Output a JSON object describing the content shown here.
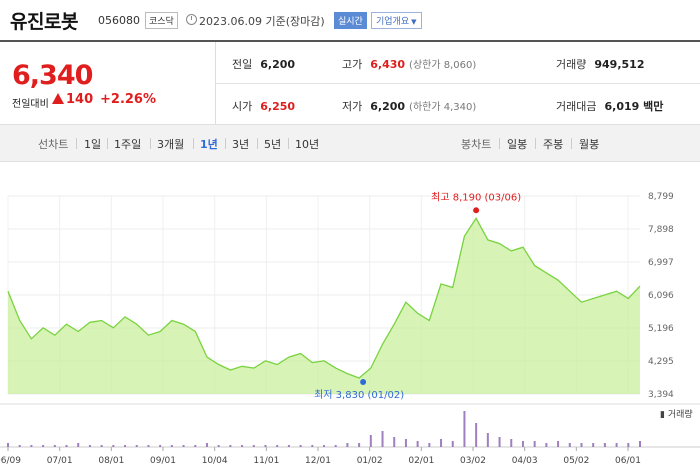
{
  "header": {
    "stock_name": "유진로봇",
    "stock_code": "056080",
    "market": "코스닥",
    "clock_icon": "clock-icon",
    "date_text": "2023.06.09 기준(장마감)",
    "realtime_label": "실시간",
    "company_info_label": "기업개요"
  },
  "colors": {
    "up": "#e01e1e",
    "accent": "#2f6bd6",
    "area_fill": "#c9ef9e",
    "area_line": "#79d33f"
  },
  "price": {
    "current": "6,340",
    "change_label": "전일대비",
    "change_icon": "triangle-up-icon",
    "change_amount": "140",
    "change_percent": "+2.26%"
  },
  "stats": {
    "prev_close_label": "전일",
    "prev_close": "6,200",
    "high_label": "고가",
    "high": "6,430",
    "upper_limit": "(상한가 8,060)",
    "volume_label": "거래량",
    "volume": "949,512",
    "open_label": "시가",
    "open": "6,250",
    "low_label": "저가",
    "low": "6,200",
    "lower_limit": "(하한가 4,340)",
    "amount_label": "거래대금",
    "amount": "6,019 백만"
  },
  "tabs": {
    "line_chart_label": "선차트",
    "periods": [
      "1일",
      "1주일",
      "3개월",
      "1년",
      "3년",
      "5년",
      "10년"
    ],
    "active_period": "1년",
    "candle_label": "봉차트",
    "candle_periods": [
      "일봉",
      "주봉",
      "월봉"
    ]
  },
  "chart_data": {
    "type": "area",
    "ylim": [
      3394,
      8799
    ],
    "yticks": [
      "8,799",
      "7,898",
      "6,997",
      "6,096",
      "5,196",
      "4,295",
      "3,394"
    ],
    "xticks": [
      "06/09",
      "07/01",
      "08/01",
      "09/01",
      "10/04",
      "11/01",
      "12/01",
      "01/02",
      "02/01",
      "03/02",
      "04/03",
      "05/02",
      "06/01"
    ],
    "high_annotation": "최고 8,190 (03/06)",
    "low_annotation": "최저 3,830 (01/02)",
    "volume_legend": "거래량",
    "x": [
      "06/09",
      "06/16",
      "06/23",
      "06/30",
      "07/07",
      "07/14",
      "07/21",
      "07/28",
      "08/04",
      "08/11",
      "08/18",
      "08/25",
      "09/01",
      "09/08",
      "09/15",
      "09/22",
      "09/29",
      "10/06",
      "10/13",
      "10/20",
      "10/27",
      "11/03",
      "11/10",
      "11/17",
      "11/24",
      "12/01",
      "12/08",
      "12/15",
      "12/22",
      "12/29",
      "01/02",
      "01/06",
      "01/13",
      "01/20",
      "01/27",
      "02/03",
      "02/10",
      "02/17",
      "02/24",
      "03/03",
      "03/06",
      "03/10",
      "03/17",
      "03/24",
      "03/31",
      "04/07",
      "04/14",
      "04/21",
      "04/28",
      "05/05",
      "05/12",
      "05/19",
      "05/26",
      "06/02",
      "06/09"
    ],
    "values": [
      6200,
      5400,
      4900,
      5200,
      5000,
      5300,
      5100,
      5350,
      5400,
      5200,
      5500,
      5300,
      5000,
      5100,
      5400,
      5300,
      5100,
      4400,
      4200,
      4050,
      4150,
      4100,
      4300,
      4200,
      4400,
      4500,
      4250,
      4300,
      4100,
      3950,
      3830,
      4100,
      4750,
      5300,
      5900,
      5600,
      5400,
      6400,
      6300,
      7700,
      8190,
      7600,
      7500,
      7300,
      7400,
      6900,
      6700,
      6500,
      6200,
      5900,
      6000,
      6100,
      6200,
      6000,
      6340
    ],
    "volumes": [
      2,
      1,
      1,
      1,
      1,
      1,
      2,
      1,
      1,
      1,
      1,
      1,
      1,
      1,
      1,
      1,
      1,
      2,
      1,
      1,
      1,
      1,
      1,
      1,
      1,
      1,
      1,
      1,
      1,
      2,
      2,
      6,
      8,
      5,
      4,
      3,
      2,
      4,
      3,
      18,
      12,
      7,
      5,
      4,
      3,
      3,
      2,
      3,
      2,
      2,
      2,
      2,
      2,
      2,
      3
    ]
  }
}
